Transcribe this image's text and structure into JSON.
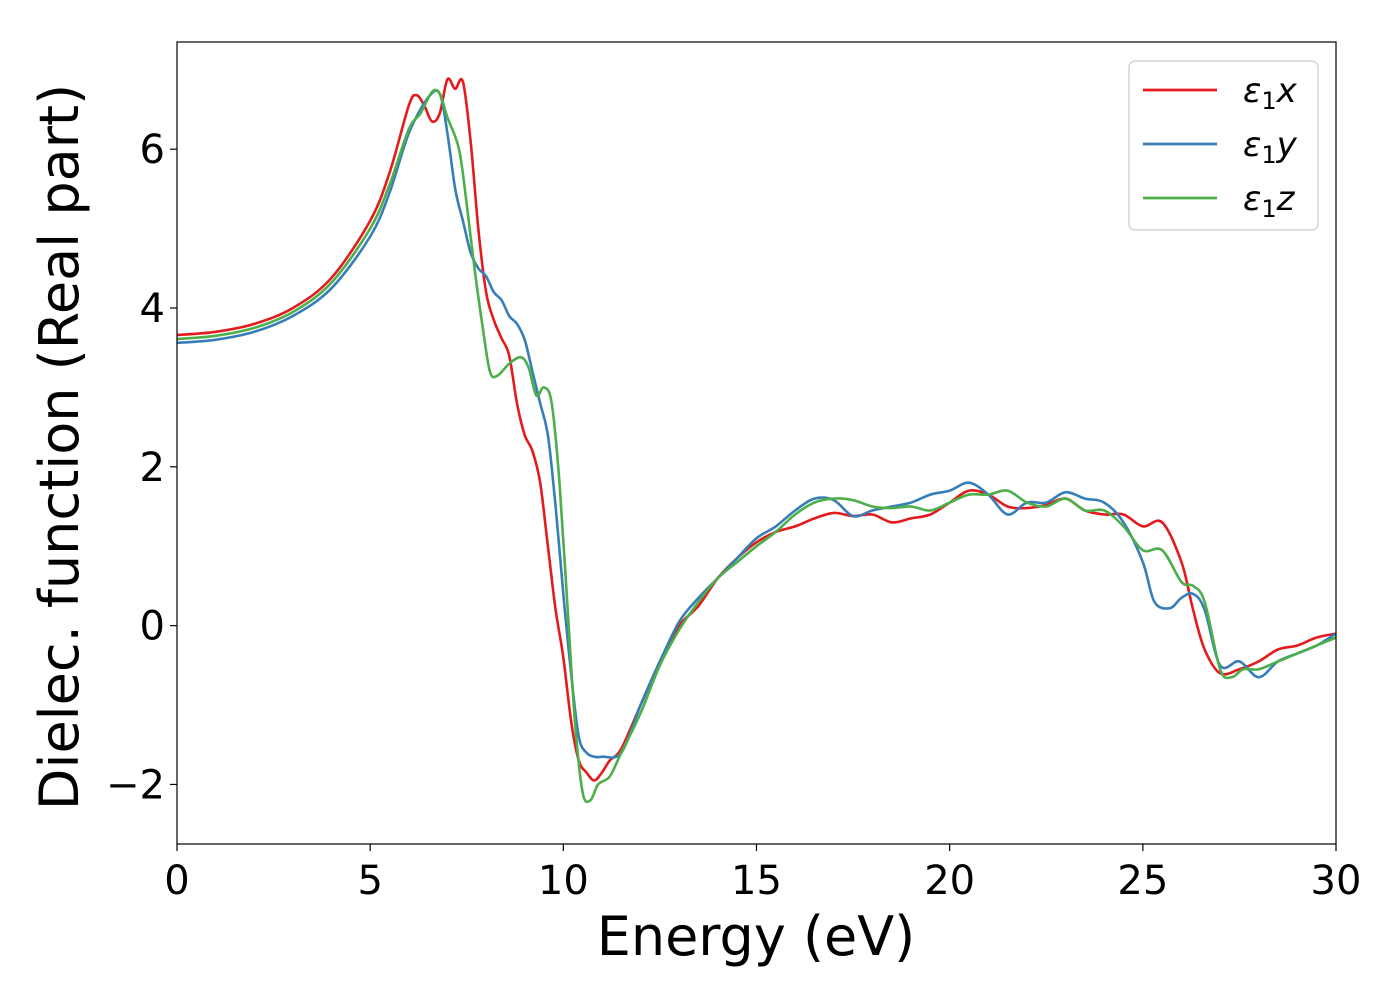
{
  "chart_data": {
    "type": "line",
    "title": "",
    "xlabel": "Energy (eV)",
    "ylabel": "Dielec. function (Real part)",
    "xlim": [
      0,
      30
    ],
    "ylim": [
      -2.75,
      7.35
    ],
    "xticks": [
      {
        "value": 0,
        "label": "0"
      },
      {
        "value": 5,
        "label": "5"
      },
      {
        "value": 10,
        "label": "10"
      },
      {
        "value": 15,
        "label": "15"
      },
      {
        "value": 20,
        "label": "20"
      },
      {
        "value": 25,
        "label": "25"
      },
      {
        "value": 30,
        "label": "30"
      }
    ],
    "yticks": [
      {
        "value": -2,
        "label": "−2"
      },
      {
        "value": 0,
        "label": "0"
      },
      {
        "value": 2,
        "label": "2"
      },
      {
        "value": 4,
        "label": "4"
      },
      {
        "value": 6,
        "label": "6"
      }
    ],
    "grid": false,
    "legend_position": "top-right",
    "series": [
      {
        "name": "ε1x",
        "legend_base": "ε",
        "legend_sub": "1",
        "legend_var": "x",
        "color": "#e41a1c",
        "points": [
          [
            0,
            3.66
          ],
          [
            1,
            3.7
          ],
          [
            2,
            3.8
          ],
          [
            3,
            4.0
          ],
          [
            4,
            4.38
          ],
          [
            5,
            5.1
          ],
          [
            5.5,
            5.7
          ],
          [
            6.0,
            6.55
          ],
          [
            6.2,
            6.68
          ],
          [
            6.4,
            6.55
          ],
          [
            6.6,
            6.35
          ],
          [
            6.8,
            6.45
          ],
          [
            7.0,
            6.88
          ],
          [
            7.2,
            6.76
          ],
          [
            7.4,
            6.85
          ],
          [
            7.6,
            6.1
          ],
          [
            7.8,
            5.0
          ],
          [
            8.0,
            4.2
          ],
          [
            8.2,
            3.85
          ],
          [
            8.4,
            3.62
          ],
          [
            8.6,
            3.4
          ],
          [
            8.8,
            2.8
          ],
          [
            9.0,
            2.4
          ],
          [
            9.2,
            2.2
          ],
          [
            9.4,
            1.8
          ],
          [
            9.6,
            1.0
          ],
          [
            9.8,
            0.2
          ],
          [
            10.0,
            -0.4
          ],
          [
            10.2,
            -1.2
          ],
          [
            10.4,
            -1.7
          ],
          [
            10.6,
            -1.85
          ],
          [
            10.8,
            -1.95
          ],
          [
            11.0,
            -1.85
          ],
          [
            11.2,
            -1.7
          ],
          [
            11.5,
            -1.55
          ],
          [
            12.0,
            -1.0
          ],
          [
            12.5,
            -0.45
          ],
          [
            13.0,
            0.0
          ],
          [
            13.5,
            0.25
          ],
          [
            14.0,
            0.6
          ],
          [
            14.5,
            0.85
          ],
          [
            15.0,
            1.05
          ],
          [
            15.5,
            1.18
          ],
          [
            16.0,
            1.25
          ],
          [
            16.5,
            1.35
          ],
          [
            17.0,
            1.42
          ],
          [
            17.5,
            1.38
          ],
          [
            18.0,
            1.4
          ],
          [
            18.5,
            1.3
          ],
          [
            19.0,
            1.35
          ],
          [
            19.5,
            1.4
          ],
          [
            20.0,
            1.55
          ],
          [
            20.5,
            1.7
          ],
          [
            21.0,
            1.65
          ],
          [
            21.5,
            1.5
          ],
          [
            22.0,
            1.48
          ],
          [
            22.5,
            1.52
          ],
          [
            23.0,
            1.6
          ],
          [
            23.5,
            1.45
          ],
          [
            24.0,
            1.4
          ],
          [
            24.5,
            1.4
          ],
          [
            25.0,
            1.25
          ],
          [
            25.5,
            1.3
          ],
          [
            26.0,
            0.8
          ],
          [
            26.3,
            0.2
          ],
          [
            26.6,
            -0.3
          ],
          [
            27.0,
            -0.6
          ],
          [
            27.5,
            -0.55
          ],
          [
            28.0,
            -0.45
          ],
          [
            28.5,
            -0.3
          ],
          [
            29.0,
            -0.25
          ],
          [
            29.5,
            -0.15
          ],
          [
            30.0,
            -0.1
          ]
        ]
      },
      {
        "name": "ε1y",
        "legend_base": "ε",
        "legend_sub": "1",
        "legend_var": "y",
        "color": "#377eb8",
        "points": [
          [
            0,
            3.56
          ],
          [
            1,
            3.6
          ],
          [
            2,
            3.7
          ],
          [
            3,
            3.9
          ],
          [
            4,
            4.25
          ],
          [
            5,
            4.9
          ],
          [
            5.5,
            5.45
          ],
          [
            6.0,
            6.2
          ],
          [
            6.5,
            6.65
          ],
          [
            6.8,
            6.7
          ],
          [
            7.0,
            6.2
          ],
          [
            7.2,
            5.5
          ],
          [
            7.4,
            5.1
          ],
          [
            7.6,
            4.7
          ],
          [
            7.8,
            4.5
          ],
          [
            8.0,
            4.4
          ],
          [
            8.2,
            4.2
          ],
          [
            8.4,
            4.1
          ],
          [
            8.6,
            3.9
          ],
          [
            8.8,
            3.8
          ],
          [
            9.0,
            3.6
          ],
          [
            9.2,
            3.2
          ],
          [
            9.4,
            2.8
          ],
          [
            9.6,
            2.4
          ],
          [
            9.8,
            1.5
          ],
          [
            10.0,
            0.4
          ],
          [
            10.2,
            -0.6
          ],
          [
            10.4,
            -1.4
          ],
          [
            10.6,
            -1.6
          ],
          [
            10.8,
            -1.65
          ],
          [
            11.0,
            -1.65
          ],
          [
            11.5,
            -1.6
          ],
          [
            12.0,
            -1.0
          ],
          [
            12.5,
            -0.45
          ],
          [
            13.0,
            0.05
          ],
          [
            13.5,
            0.35
          ],
          [
            14.0,
            0.6
          ],
          [
            14.5,
            0.85
          ],
          [
            15.0,
            1.1
          ],
          [
            15.5,
            1.25
          ],
          [
            16.0,
            1.45
          ],
          [
            16.5,
            1.6
          ],
          [
            17.0,
            1.58
          ],
          [
            17.5,
            1.38
          ],
          [
            18.0,
            1.45
          ],
          [
            18.5,
            1.5
          ],
          [
            19.0,
            1.55
          ],
          [
            19.5,
            1.65
          ],
          [
            20.0,
            1.7
          ],
          [
            20.5,
            1.8
          ],
          [
            21.0,
            1.65
          ],
          [
            21.5,
            1.4
          ],
          [
            22.0,
            1.55
          ],
          [
            22.5,
            1.55
          ],
          [
            23.0,
            1.68
          ],
          [
            23.5,
            1.6
          ],
          [
            24.0,
            1.55
          ],
          [
            24.5,
            1.3
          ],
          [
            25.0,
            0.8
          ],
          [
            25.3,
            0.3
          ],
          [
            25.7,
            0.22
          ],
          [
            26.0,
            0.35
          ],
          [
            26.3,
            0.4
          ],
          [
            26.6,
            0.2
          ],
          [
            27.0,
            -0.5
          ],
          [
            27.5,
            -0.45
          ],
          [
            28.0,
            -0.65
          ],
          [
            28.5,
            -0.45
          ],
          [
            29.0,
            -0.35
          ],
          [
            29.5,
            -0.25
          ],
          [
            30.0,
            -0.1
          ]
        ]
      },
      {
        "name": "ε1z",
        "legend_base": "ε",
        "legend_sub": "1",
        "legend_var": "z",
        "color": "#4daf4a",
        "points": [
          [
            0,
            3.61
          ],
          [
            1,
            3.65
          ],
          [
            2,
            3.75
          ],
          [
            3,
            3.95
          ],
          [
            4,
            4.32
          ],
          [
            5,
            5.0
          ],
          [
            5.5,
            5.55
          ],
          [
            6.0,
            6.25
          ],
          [
            6.3,
            6.45
          ],
          [
            6.6,
            6.72
          ],
          [
            6.8,
            6.7
          ],
          [
            7.0,
            6.4
          ],
          [
            7.3,
            6.0
          ],
          [
            7.5,
            5.3
          ],
          [
            7.7,
            4.5
          ],
          [
            7.9,
            3.8
          ],
          [
            8.1,
            3.2
          ],
          [
            8.3,
            3.15
          ],
          [
            8.6,
            3.3
          ],
          [
            8.9,
            3.38
          ],
          [
            9.1,
            3.25
          ],
          [
            9.3,
            2.9
          ],
          [
            9.5,
            3.0
          ],
          [
            9.7,
            2.8
          ],
          [
            9.9,
            1.8
          ],
          [
            10.1,
            0.3
          ],
          [
            10.3,
            -1.2
          ],
          [
            10.5,
            -2.1
          ],
          [
            10.7,
            -2.2
          ],
          [
            10.9,
            -2.0
          ],
          [
            11.2,
            -1.9
          ],
          [
            11.5,
            -1.6
          ],
          [
            12.0,
            -1.1
          ],
          [
            12.5,
            -0.5
          ],
          [
            13.0,
            -0.05
          ],
          [
            13.5,
            0.3
          ],
          [
            14.0,
            0.6
          ],
          [
            14.5,
            0.8
          ],
          [
            15.0,
            1.0
          ],
          [
            15.5,
            1.18
          ],
          [
            16.0,
            1.4
          ],
          [
            16.5,
            1.55
          ],
          [
            17.0,
            1.6
          ],
          [
            17.5,
            1.58
          ],
          [
            18.0,
            1.5
          ],
          [
            18.5,
            1.48
          ],
          [
            19.0,
            1.5
          ],
          [
            19.5,
            1.45
          ],
          [
            20.0,
            1.55
          ],
          [
            20.5,
            1.65
          ],
          [
            21.0,
            1.65
          ],
          [
            21.5,
            1.7
          ],
          [
            22.0,
            1.55
          ],
          [
            22.5,
            1.5
          ],
          [
            23.0,
            1.6
          ],
          [
            23.5,
            1.45
          ],
          [
            24.0,
            1.45
          ],
          [
            24.5,
            1.25
          ],
          [
            25.0,
            0.95
          ],
          [
            25.5,
            0.95
          ],
          [
            26.0,
            0.55
          ],
          [
            26.3,
            0.5
          ],
          [
            26.6,
            0.3
          ],
          [
            27.0,
            -0.55
          ],
          [
            27.3,
            -0.65
          ],
          [
            27.6,
            -0.55
          ],
          [
            28.0,
            -0.55
          ],
          [
            28.5,
            -0.45
          ],
          [
            29.0,
            -0.35
          ],
          [
            29.5,
            -0.25
          ],
          [
            30.0,
            -0.15
          ]
        ]
      }
    ]
  }
}
